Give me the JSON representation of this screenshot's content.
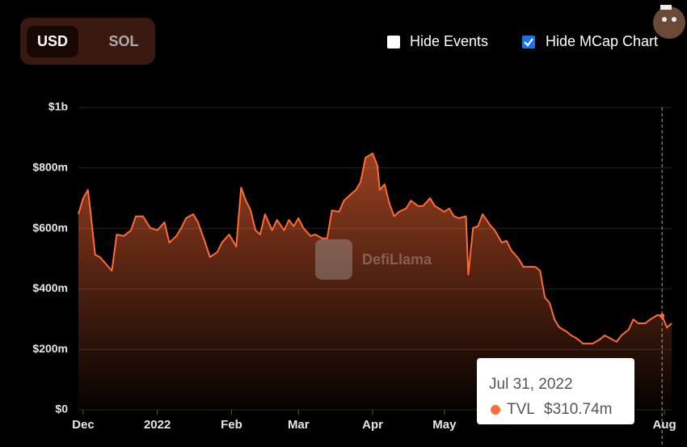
{
  "currency": {
    "options": [
      "USD",
      "SOL"
    ],
    "selected": 0
  },
  "toggles": [
    {
      "label": "Hide Events",
      "checked": false
    },
    {
      "label": "Hide MCap Chart",
      "checked": true
    }
  ],
  "watermark": "DefiLlama",
  "chart_data": {
    "type": "area",
    "x": [
      "2021-11-29",
      "2021-12-01",
      "2021-12-03",
      "2021-12-04",
      "2021-12-06",
      "2021-12-08",
      "2021-12-10",
      "2021-12-13",
      "2021-12-15",
      "2021-12-18",
      "2021-12-21",
      "2021-12-23",
      "2021-12-26",
      "2021-12-29",
      "2022-01-01",
      "2022-01-04",
      "2022-01-06",
      "2022-01-09",
      "2022-01-11",
      "2022-01-13",
      "2022-01-16",
      "2022-01-18",
      "2022-01-21",
      "2022-01-23",
      "2022-01-26",
      "2022-01-28",
      "2022-01-31",
      "2022-02-03",
      "2022-02-05",
      "2022-02-07",
      "2022-02-09",
      "2022-02-11",
      "2022-02-13",
      "2022-02-15",
      "2022-02-18",
      "2022-02-20",
      "2022-02-23",
      "2022-02-25",
      "2022-02-27",
      "2022-03-01",
      "2022-03-03",
      "2022-03-06",
      "2022-03-08",
      "2022-03-11",
      "2022-03-13",
      "2022-03-15",
      "2022-03-18",
      "2022-03-20",
      "2022-03-23",
      "2022-03-25",
      "2022-03-27",
      "2022-03-29",
      "2022-04-01",
      "2022-04-03",
      "2022-04-04",
      "2022-04-06",
      "2022-04-08",
      "2022-04-10",
      "2022-04-12",
      "2022-04-15",
      "2022-04-17",
      "2022-04-20",
      "2022-04-22",
      "2022-04-25",
      "2022-04-27",
      "2022-05-01",
      "2022-05-03",
      "2022-05-05",
      "2022-05-07",
      "2022-05-10",
      "2022-05-11",
      "2022-05-13",
      "2022-05-15",
      "2022-05-17",
      "2022-05-20",
      "2022-05-22",
      "2022-05-25",
      "2022-05-27",
      "2022-05-29",
      "2022-06-01",
      "2022-06-03",
      "2022-06-05",
      "2022-06-08",
      "2022-06-10",
      "2022-06-12",
      "2022-06-14",
      "2022-06-16",
      "2022-06-18",
      "2022-06-21",
      "2022-06-23",
      "2022-06-25",
      "2022-06-28",
      "2022-06-30",
      "2022-07-02",
      "2022-07-05",
      "2022-07-07",
      "2022-07-09",
      "2022-07-12",
      "2022-07-14",
      "2022-07-17",
      "2022-07-19",
      "2022-07-21",
      "2022-07-24",
      "2022-07-26",
      "2022-07-29",
      "2022-07-31",
      "2022-08-02",
      "2022-08-04"
    ],
    "series": [
      {
        "name": "TVL",
        "color": "#ff6b35",
        "values": [
          647000000,
          700000000,
          727000000,
          660000000,
          513000000,
          505000000,
          487000000,
          460000000,
          580000000,
          575000000,
          594000000,
          640000000,
          640000000,
          602000000,
          594000000,
          620000000,
          553000000,
          575000000,
          602000000,
          634000000,
          647000000,
          620000000,
          553000000,
          505000000,
          521000000,
          553000000,
          580000000,
          540000000,
          735000000,
          692000000,
          660000000,
          594000000,
          580000000,
          647000000,
          594000000,
          628000000,
          594000000,
          628000000,
          607000000,
          634000000,
          602000000,
          575000000,
          580000000,
          567000000,
          567000000,
          660000000,
          655000000,
          692000000,
          714000000,
          727000000,
          754000000,
          834000000,
          848000000,
          807000000,
          727000000,
          746000000,
          682000000,
          640000000,
          655000000,
          666000000,
          692000000,
          674000000,
          674000000,
          700000000,
          674000000,
          655000000,
          666000000,
          640000000,
          634000000,
          640000000,
          447000000,
          602000000,
          607000000,
          647000000,
          612000000,
          594000000,
          553000000,
          559000000,
          527000000,
          500000000,
          473000000,
          473000000,
          473000000,
          460000000,
          372000000,
          353000000,
          299000000,
          273000000,
          259000000,
          246000000,
          238000000,
          219000000,
          219000000,
          219000000,
          233000000,
          246000000,
          238000000,
          225000000,
          246000000,
          265000000,
          299000000,
          286000000,
          286000000,
          299000000,
          313000000,
          310740000,
          272000000,
          286000000
        ]
      }
    ],
    "xlim": [
      "2021-11-29",
      "2022-08-04"
    ],
    "xticks": [
      {
        "value": "2021-12-01",
        "label": "Dec"
      },
      {
        "value": "2022-01-01",
        "label": "2022"
      },
      {
        "value": "2022-02-01",
        "label": "Feb"
      },
      {
        "value": "2022-03-01",
        "label": "Mar"
      },
      {
        "value": "2022-04-01",
        "label": "Apr"
      },
      {
        "value": "2022-05-01",
        "label": "May"
      },
      {
        "value": "2022-08-01",
        "label": "Aug"
      }
    ],
    "ylim": [
      0,
      1000000000
    ],
    "yticks": [
      {
        "value": 0,
        "label": "$0"
      },
      {
        "value": 200000000,
        "label": "$200m"
      },
      {
        "value": 400000000,
        "label": "$400m"
      },
      {
        "value": 600000000,
        "label": "$600m"
      },
      {
        "value": 800000000,
        "label": "$800m"
      },
      {
        "value": 1000000000,
        "label": "$1b"
      }
    ],
    "grid": true,
    "tooltip": {
      "x": "2022-07-31",
      "date_label": "Jul 31, 2022",
      "value": 310740000,
      "value_label": "$310.74m"
    }
  }
}
